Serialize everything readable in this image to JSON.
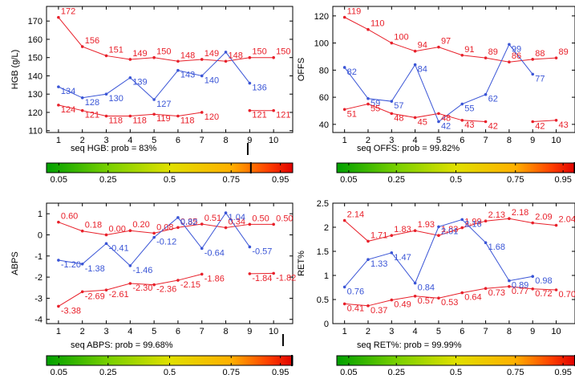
{
  "colors": {
    "upper": "#e8202a",
    "lower": "#e8202a",
    "measured": "#3a55d6",
    "axis": "#000000",
    "colorbar": [
      "#00a800",
      "#8ad400",
      "#e8e800",
      "#ffb000",
      "#ff3000",
      "#e00000"
    ]
  },
  "chart_data": [
    {
      "type": "line",
      "ylabel": "HGB (g/L)",
      "caption": "seq HGB: prob = 83%",
      "probability": 0.83,
      "x": [
        1,
        2,
        3,
        4,
        5,
        6,
        7,
        8,
        9,
        10
      ],
      "xlim": [
        0.5,
        10.8
      ],
      "ylim": [
        109,
        178
      ],
      "yticks": [
        110,
        120,
        130,
        140,
        150,
        160,
        170
      ],
      "series": [
        {
          "role": "upper",
          "x": [
            1,
            2,
            3,
            4,
            5,
            6,
            7,
            8,
            9,
            10
          ],
          "values": [
            172,
            156,
            151,
            149,
            150,
            148,
            149,
            148,
            150,
            150
          ],
          "labels": [
            "172",
            "156",
            "151",
            "149",
            "150",
            "148",
            "149",
            "148",
            "150",
            "150"
          ]
        },
        {
          "role": "measured",
          "x": [
            1,
            2,
            3,
            4,
            5,
            6,
            7,
            8,
            9
          ],
          "values": [
            134,
            128,
            130,
            139,
            127,
            143,
            140,
            153,
            136
          ],
          "labels": [
            "134",
            "128",
            "130",
            "139",
            "127",
            "143",
            "140",
            "",
            "136"
          ]
        },
        {
          "role": "lower",
          "x": [
            1,
            2,
            3,
            4,
            5,
            6,
            7
          ],
          "values": [
            124,
            121,
            118,
            118,
            119,
            118,
            120
          ],
          "labels": [
            "124",
            "121",
            "118",
            "118",
            "119",
            "118",
            "120"
          ]
        },
        {
          "role": "lower",
          "x": [
            9,
            10
          ],
          "values": [
            121,
            121
          ],
          "labels": [
            "121",
            "121"
          ]
        }
      ]
    },
    {
      "type": "line",
      "ylabel": "OFFS",
      "caption": "seq OFFS: prob = 99.82%",
      "probability": 0.9982,
      "x": [
        1,
        2,
        3,
        4,
        5,
        6,
        7,
        8,
        9,
        10
      ],
      "xlim": [
        0.5,
        10.8
      ],
      "ylim": [
        34,
        127
      ],
      "yticks": [
        40,
        60,
        80,
        100,
        120
      ],
      "series": [
        {
          "role": "upper",
          "x": [
            1,
            2,
            3,
            4,
            5,
            6,
            7,
            8,
            9,
            10
          ],
          "values": [
            119,
            110,
            100,
            94,
            97,
            91,
            89,
            86,
            88,
            89
          ],
          "labels": [
            "119",
            "110",
            "100",
            "94",
            "97",
            "91",
            "89",
            "86",
            "88",
            "89"
          ]
        },
        {
          "role": "measured",
          "x": [
            1,
            2,
            3,
            4,
            5,
            6,
            7,
            8,
            9
          ],
          "values": [
            82,
            59,
            57,
            84,
            42,
            55,
            62,
            99,
            77
          ],
          "labels": [
            "82",
            "59",
            "57",
            "84",
            "42",
            "55",
            "62",
            "99",
            "77"
          ]
        },
        {
          "role": "lower",
          "x": [
            1,
            2,
            3,
            4,
            5,
            6,
            7
          ],
          "values": [
            51,
            55,
            48,
            45,
            48,
            43,
            42
          ],
          "labels": [
            "51",
            "55",
            "48",
            "45",
            "48",
            "43",
            "42"
          ]
        },
        {
          "role": "lower",
          "x": [
            9,
            10
          ],
          "values": [
            42,
            43
          ],
          "labels": [
            "42",
            "43"
          ]
        }
      ]
    },
    {
      "type": "line",
      "ylabel": "ABPS",
      "caption": "seq ABPS: prob = 99.68%",
      "probability": 0.9968,
      "x": [
        1,
        2,
        3,
        4,
        5,
        6,
        7,
        8,
        9,
        10
      ],
      "xlim": [
        0.5,
        10.8
      ],
      "ylim": [
        -4.2,
        1.5
      ],
      "yticks": [
        -4,
        -3,
        -2,
        -1,
        0,
        1
      ],
      "series": [
        {
          "role": "upper",
          "x": [
            1,
            2,
            3,
            4,
            5,
            6,
            7,
            8,
            9,
            10
          ],
          "values": [
            0.6,
            0.18,
            0.0,
            0.2,
            0.08,
            0.35,
            0.51,
            0.34,
            0.5,
            0.5
          ],
          "labels": [
            "0.60",
            "0.18",
            "0.00",
            "0.20",
            "0.08",
            "0.35",
            "0.51",
            "0.34",
            "0.50",
            "0.50"
          ]
        },
        {
          "role": "measured",
          "x": [
            1,
            2,
            3,
            4,
            5,
            6,
            7,
            8,
            9
          ],
          "values": [
            -1.2,
            -1.38,
            -0.41,
            -1.46,
            -0.12,
            0.82,
            -0.64,
            1.04,
            -0.57
          ],
          "labels": [
            "-1.20",
            "-1.38",
            "-0.41",
            "-1.46",
            "-0.12",
            "0.82",
            "-0.64",
            "1.04",
            "-0.57"
          ]
        },
        {
          "role": "lower",
          "x": [
            1,
            2,
            3,
            4,
            5,
            6,
            7
          ],
          "values": [
            -3.38,
            -2.69,
            -2.61,
            -2.3,
            -2.36,
            -2.15,
            -1.86
          ],
          "labels": [
            "-3.38",
            "-2.69",
            "-2.61",
            "-2.30",
            "-2.36",
            "-2.15",
            "-1.86"
          ]
        },
        {
          "role": "lower",
          "x": [
            9,
            10
          ],
          "values": [
            -1.84,
            -1.82
          ],
          "labels": [
            "-1.84",
            "-1.82"
          ]
        }
      ]
    },
    {
      "type": "line",
      "ylabel": "RET%",
      "caption": "seq RET%: prob = 99.99%",
      "probability": 0.9999,
      "x": [
        1,
        2,
        3,
        4,
        5,
        6,
        7,
        8,
        9,
        10
      ],
      "xlim": [
        0.5,
        10.8
      ],
      "ylim": [
        0,
        2.5
      ],
      "yticks": [
        0,
        0.5,
        1,
        1.5,
        2,
        2.5
      ],
      "series": [
        {
          "role": "upper",
          "x": [
            1,
            2,
            3,
            4,
            5,
            6,
            7,
            8,
            9,
            10
          ],
          "values": [
            2.14,
            1.71,
            1.83,
            1.93,
            1.83,
            1.99,
            2.13,
            2.18,
            2.09,
            2.04
          ],
          "labels": [
            "2.14",
            "1.71",
            "1.83",
            "1.93",
            "1.83",
            "1.99",
            "2.13",
            "2.18",
            "2.09",
            "2.04"
          ]
        },
        {
          "role": "measured",
          "x": [
            1,
            2,
            3,
            4,
            5,
            6,
            7,
            8,
            9
          ],
          "values": [
            0.76,
            1.33,
            1.47,
            0.84,
            2.01,
            2.16,
            1.68,
            0.89,
            0.98
          ],
          "labels": [
            "0.76",
            "1.33",
            "1.47",
            "0.84",
            "2.01",
            "2.16",
            "1.68",
            "0.89",
            "0.98"
          ]
        },
        {
          "role": "lower",
          "x": [
            1,
            2,
            3,
            4,
            5,
            6,
            7,
            8,
            9,
            10
          ],
          "values": [
            0.41,
            0.37,
            0.49,
            0.57,
            0.53,
            0.64,
            0.73,
            0.77,
            0.72,
            0.7
          ],
          "labels": [
            "0.41",
            "0.37",
            "0.49",
            "0.57",
            "0.53",
            "0.64",
            "0.73",
            "0.77",
            "0.72",
            "0.70"
          ]
        }
      ]
    }
  ],
  "colorbar_ticks": [
    "0.05",
    "0.25",
    "0.5",
    "0.75",
    "0.95"
  ],
  "colorbar_values": [
    0.05,
    0.25,
    0.5,
    0.75,
    0.95
  ]
}
